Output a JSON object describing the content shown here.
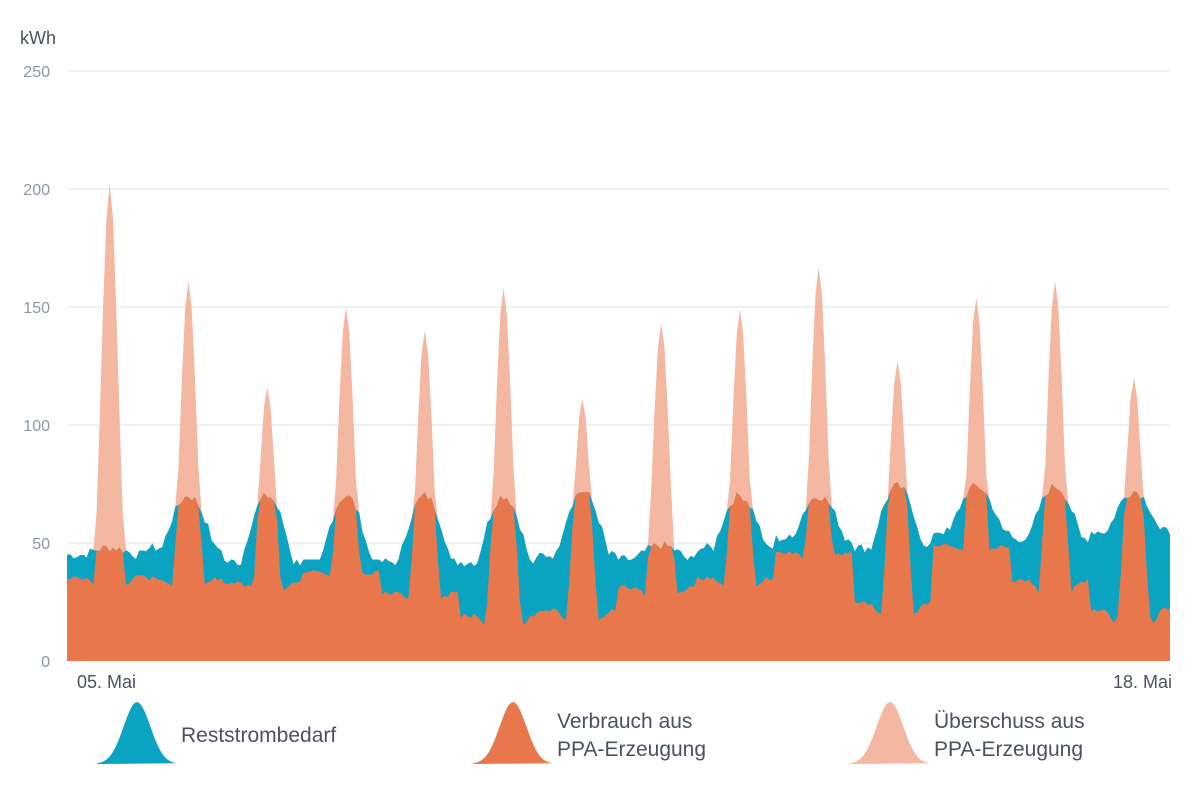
{
  "chart_data": {
    "type": "area",
    "stacked": true,
    "unit_label": "kWh",
    "ylim": [
      0,
      250
    ],
    "yticks": [
      0,
      50,
      100,
      150,
      200,
      250
    ],
    "grid": true,
    "x_range_labels": [
      "05. Mai",
      "18. Mai"
    ],
    "legend_position": "bottom",
    "days": 14,
    "day_peaks": {
      "total": [
        202,
        161,
        116,
        150,
        140,
        158,
        111,
        143,
        149,
        167,
        127,
        154,
        161,
        120
      ],
      "consumption_peak": [
        48,
        70,
        70,
        70,
        70,
        70,
        72,
        49,
        70,
        70,
        74,
        74,
        74,
        72
      ],
      "night_demand": [
        45,
        48,
        42,
        40,
        42,
        42,
        45,
        43,
        48,
        52,
        48,
        55,
        52,
        55
      ],
      "night_low": [
        30,
        28,
        28,
        35,
        22,
        8,
        10,
        25,
        28,
        42,
        13,
        45,
        25,
        6
      ]
    },
    "series": [
      {
        "name": "Reststrombedarf",
        "color": "#0aa3c2"
      },
      {
        "name": "Verbrauch aus PPA-Erzeugung",
        "color": "#e8784b"
      },
      {
        "name": "Überschuss aus PPA-Erzeugung",
        "color": "#f4b7a1"
      }
    ],
    "legend": [
      {
        "lines": [
          "Reststrombedarf"
        ],
        "color": "#0aa3c2"
      },
      {
        "lines": [
          "Verbrauch aus",
          "PPA-Erzeugung"
        ],
        "color": "#e8784b"
      },
      {
        "lines": [
          "Überschuss aus",
          "PPA-Erzeugung"
        ],
        "color": "#f4b7a1"
      }
    ]
  }
}
